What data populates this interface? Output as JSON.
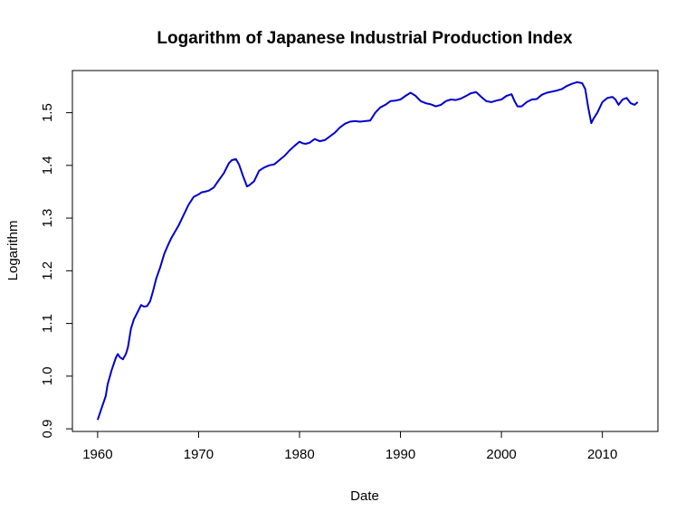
{
  "chart_data": {
    "type": "line",
    "title": "Logarithm of Japanese Industrial Production Index",
    "xlabel": "Date",
    "ylabel": "Logarithm",
    "xlim": [
      1957.5,
      2015.5
    ],
    "ylim": [
      0.895,
      1.58
    ],
    "x_ticks": [
      1960,
      1970,
      1980,
      1990,
      2000,
      2010
    ],
    "x_tick_labels": [
      "1960",
      "1970",
      "1980",
      "1990",
      "2000",
      "2010"
    ],
    "y_ticks": [
      0.9,
      1.0,
      1.1,
      1.2,
      1.3,
      1.4,
      1.5
    ],
    "y_tick_labels": [
      "0.9",
      "1.0",
      "1.1",
      "1.2",
      "1.3",
      "1.4",
      "1.5"
    ],
    "grid": false,
    "colors": {
      "line": "#0000cc",
      "axis": "#000000"
    },
    "series": [
      {
        "x": [
          1960.0,
          1960.4,
          1960.8,
          1961.0,
          1961.4,
          1961.8,
          1962.0,
          1962.2,
          1962.5,
          1962.8,
          1963.0,
          1963.3,
          1963.6,
          1964.0,
          1964.3,
          1964.6,
          1964.9,
          1965.2,
          1965.5,
          1965.8,
          1966.2,
          1966.6,
          1967.0,
          1967.3,
          1967.6,
          1968.0,
          1968.5,
          1969.0,
          1969.5,
          1970.0,
          1970.3,
          1970.6,
          1971.0,
          1971.5,
          1972.0,
          1972.5,
          1973.0,
          1973.3,
          1973.7,
          1974.0,
          1974.4,
          1974.8,
          1975.0,
          1975.5,
          1976.0,
          1976.5,
          1977.0,
          1977.5,
          1978.0,
          1978.5,
          1979.0,
          1979.5,
          1980.0,
          1980.3,
          1980.6,
          1981.0,
          1981.5,
          1982.0,
          1982.5,
          1983.0,
          1983.5,
          1984.0,
          1984.5,
          1985.0,
          1985.5,
          1986.0,
          1986.5,
          1987.0,
          1987.5,
          1988.0,
          1988.5,
          1989.0,
          1989.5,
          1990.0,
          1990.5,
          1991.0,
          1991.5,
          1992.0,
          1992.5,
          1993.0,
          1993.5,
          1994.0,
          1994.5,
          1995.0,
          1995.5,
          1996.0,
          1996.5,
          1997.0,
          1997.5,
          1998.0,
          1998.5,
          1999.0,
          1999.5,
          2000.0,
          2000.5,
          2001.0,
          2001.3,
          2001.6,
          2002.0,
          2002.5,
          2003.0,
          2003.5,
          2004.0,
          2004.5,
          2005.0,
          2005.5,
          2006.0,
          2006.5,
          2007.0,
          2007.5,
          2008.0,
          2008.3,
          2008.6,
          2008.9,
          2009.1,
          2009.5,
          2010.0,
          2010.5,
          2011.0,
          2011.3,
          2011.6,
          2012.0,
          2012.4,
          2012.8,
          2013.2,
          2013.5
        ],
        "y": [
          0.917,
          0.94,
          0.962,
          0.985,
          1.012,
          1.035,
          1.042,
          1.036,
          1.032,
          1.042,
          1.055,
          1.09,
          1.108,
          1.123,
          1.135,
          1.132,
          1.133,
          1.142,
          1.162,
          1.185,
          1.207,
          1.232,
          1.25,
          1.262,
          1.272,
          1.285,
          1.305,
          1.325,
          1.34,
          1.345,
          1.349,
          1.35,
          1.352,
          1.358,
          1.372,
          1.385,
          1.404,
          1.41,
          1.412,
          1.402,
          1.38,
          1.36,
          1.362,
          1.37,
          1.39,
          1.396,
          1.4,
          1.402,
          1.41,
          1.418,
          1.428,
          1.437,
          1.445,
          1.442,
          1.441,
          1.443,
          1.45,
          1.446,
          1.448,
          1.455,
          1.462,
          1.472,
          1.479,
          1.483,
          1.484,
          1.483,
          1.484,
          1.485,
          1.5,
          1.51,
          1.515,
          1.522,
          1.523,
          1.525,
          1.532,
          1.538,
          1.532,
          1.522,
          1.518,
          1.516,
          1.512,
          1.515,
          1.522,
          1.525,
          1.524,
          1.527,
          1.532,
          1.537,
          1.539,
          1.53,
          1.522,
          1.52,
          1.523,
          1.525,
          1.532,
          1.535,
          1.522,
          1.512,
          1.512,
          1.52,
          1.525,
          1.526,
          1.534,
          1.538,
          1.54,
          1.542,
          1.545,
          1.551,
          1.555,
          1.558,
          1.556,
          1.545,
          1.51,
          1.48,
          1.488,
          1.5,
          1.52,
          1.528,
          1.53,
          1.525,
          1.515,
          1.525,
          1.528,
          1.518,
          1.515,
          1.52
        ]
      }
    ]
  }
}
